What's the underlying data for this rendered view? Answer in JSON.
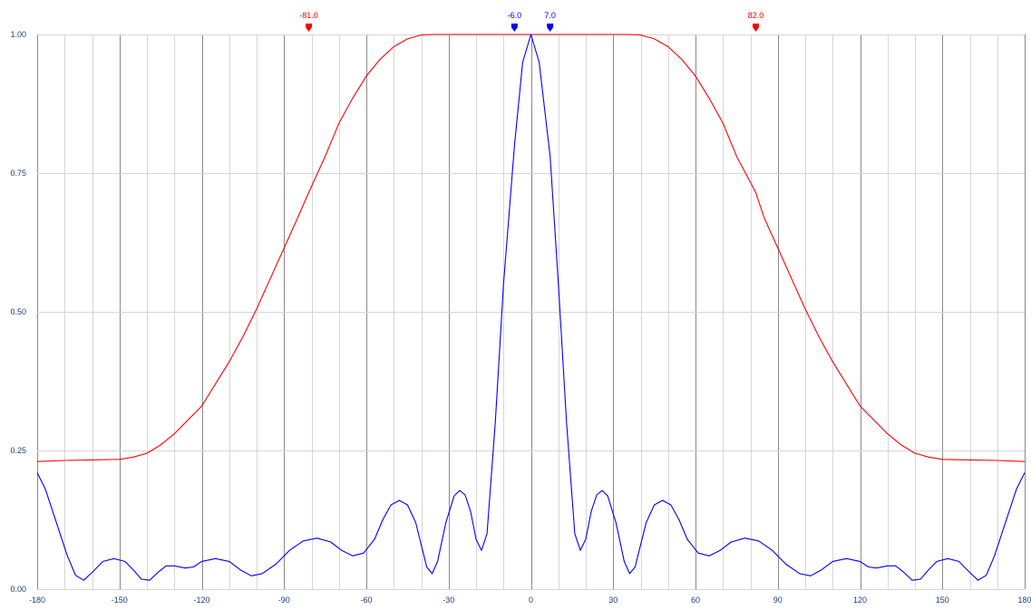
{
  "colors": {
    "background": "#ffffff",
    "major_grid": "#8a8a8a",
    "minor_grid": "#d6d6d6",
    "axis_text": "#1f3f7a"
  },
  "chart_data": {
    "type": "line",
    "title": "",
    "xlabel": "",
    "ylabel": "",
    "xlim": [
      -180,
      180
    ],
    "ylim": [
      0,
      1
    ],
    "grid": true,
    "legend": "none",
    "x_ticks": [
      "-180",
      "-150",
      "-120",
      "-90",
      "-60",
      "-30",
      "0",
      "30",
      "60",
      "90",
      "120",
      "150",
      "180"
    ],
    "y_ticks": [
      "0.00",
      "0.25",
      "0.50",
      "0.75",
      "1.00"
    ],
    "series": [
      {
        "color": "#ff0000",
        "points": [
          [
            -180,
            0.23
          ],
          [
            -170,
            0.232
          ],
          [
            -160,
            0.233
          ],
          [
            -150,
            0.234
          ],
          [
            -145,
            0.238
          ],
          [
            -140,
            0.245
          ],
          [
            -135,
            0.26
          ],
          [
            -130,
            0.28
          ],
          [
            -125,
            0.305
          ],
          [
            -120,
            0.33
          ],
          [
            -115,
            0.37
          ],
          [
            -110,
            0.41
          ],
          [
            -105,
            0.455
          ],
          [
            -100,
            0.505
          ],
          [
            -95,
            0.56
          ],
          [
            -90,
            0.615
          ],
          [
            -85,
            0.67
          ],
          [
            -81,
            0.715
          ],
          [
            -75,
            0.78
          ],
          [
            -70,
            0.84
          ],
          [
            -65,
            0.885
          ],
          [
            -60,
            0.925
          ],
          [
            -55,
            0.955
          ],
          [
            -50,
            0.978
          ],
          [
            -45,
            0.992
          ],
          [
            -40,
            0.999
          ],
          [
            -35,
            1.0
          ],
          [
            0,
            1.0
          ],
          [
            35,
            1.0
          ],
          [
            40,
            0.999
          ],
          [
            45,
            0.992
          ],
          [
            50,
            0.978
          ],
          [
            55,
            0.955
          ],
          [
            60,
            0.925
          ],
          [
            65,
            0.885
          ],
          [
            70,
            0.84
          ],
          [
            75,
            0.78
          ],
          [
            82,
            0.715
          ],
          [
            85,
            0.67
          ],
          [
            90,
            0.615
          ],
          [
            95,
            0.56
          ],
          [
            100,
            0.505
          ],
          [
            105,
            0.455
          ],
          [
            110,
            0.41
          ],
          [
            115,
            0.37
          ],
          [
            120,
            0.33
          ],
          [
            125,
            0.305
          ],
          [
            130,
            0.28
          ],
          [
            135,
            0.26
          ],
          [
            140,
            0.245
          ],
          [
            145,
            0.238
          ],
          [
            150,
            0.234
          ],
          [
            160,
            0.233
          ],
          [
            170,
            0.232
          ],
          [
            180,
            0.23
          ]
        ]
      },
      {
        "color": "#0000ff",
        "points": [
          [
            -180,
            0.21
          ],
          [
            -177,
            0.18
          ],
          [
            -173,
            0.12
          ],
          [
            -169,
            0.06
          ],
          [
            -166,
            0.025
          ],
          [
            -163,
            0.016
          ],
          [
            -160,
            0.03
          ],
          [
            -156,
            0.05
          ],
          [
            -152,
            0.055
          ],
          [
            -148,
            0.05
          ],
          [
            -145,
            0.035
          ],
          [
            -142,
            0.018
          ],
          [
            -139,
            0.016
          ],
          [
            -136,
            0.03
          ],
          [
            -133,
            0.042
          ],
          [
            -130,
            0.042
          ],
          [
            -126,
            0.038
          ],
          [
            -123,
            0.04
          ],
          [
            -120,
            0.05
          ],
          [
            -115,
            0.055
          ],
          [
            -110,
            0.05
          ],
          [
            -106,
            0.035
          ],
          [
            -102,
            0.024
          ],
          [
            -98,
            0.028
          ],
          [
            -93,
            0.045
          ],
          [
            -88,
            0.07
          ],
          [
            -83,
            0.087
          ],
          [
            -78,
            0.092
          ],
          [
            -73,
            0.085
          ],
          [
            -69,
            0.07
          ],
          [
            -65,
            0.06
          ],
          [
            -61,
            0.065
          ],
          [
            -57,
            0.09
          ],
          [
            -54,
            0.125
          ],
          [
            -51,
            0.152
          ],
          [
            -48,
            0.16
          ],
          [
            -45,
            0.152
          ],
          [
            -42,
            0.12
          ],
          [
            -40,
            0.08
          ],
          [
            -38,
            0.04
          ],
          [
            -36,
            0.028
          ],
          [
            -34,
            0.05
          ],
          [
            -31,
            0.12
          ],
          [
            -28,
            0.168
          ],
          [
            -26,
            0.178
          ],
          [
            -24,
            0.17
          ],
          [
            -22,
            0.14
          ],
          [
            -20,
            0.09
          ],
          [
            -18,
            0.07
          ],
          [
            -16,
            0.1
          ],
          [
            -13,
            0.3
          ],
          [
            -10,
            0.55
          ],
          [
            -6,
            0.8
          ],
          [
            -3,
            0.95
          ],
          [
            0,
            1.0
          ],
          [
            3,
            0.95
          ],
          [
            7,
            0.78
          ],
          [
            10,
            0.55
          ],
          [
            13,
            0.3
          ],
          [
            16,
            0.1
          ],
          [
            18,
            0.07
          ],
          [
            20,
            0.09
          ],
          [
            22,
            0.14
          ],
          [
            24,
            0.17
          ],
          [
            26,
            0.178
          ],
          [
            28,
            0.168
          ],
          [
            31,
            0.12
          ],
          [
            34,
            0.05
          ],
          [
            36,
            0.028
          ],
          [
            38,
            0.04
          ],
          [
            40,
            0.08
          ],
          [
            42,
            0.12
          ],
          [
            45,
            0.152
          ],
          [
            48,
            0.16
          ],
          [
            51,
            0.152
          ],
          [
            54,
            0.125
          ],
          [
            57,
            0.09
          ],
          [
            61,
            0.065
          ],
          [
            65,
            0.06
          ],
          [
            69,
            0.07
          ],
          [
            73,
            0.085
          ],
          [
            78,
            0.092
          ],
          [
            83,
            0.087
          ],
          [
            88,
            0.07
          ],
          [
            93,
            0.045
          ],
          [
            98,
            0.028
          ],
          [
            102,
            0.024
          ],
          [
            106,
            0.035
          ],
          [
            110,
            0.05
          ],
          [
            115,
            0.055
          ],
          [
            120,
            0.05
          ],
          [
            123,
            0.04
          ],
          [
            126,
            0.038
          ],
          [
            130,
            0.042
          ],
          [
            133,
            0.042
          ],
          [
            136,
            0.03
          ],
          [
            139,
            0.016
          ],
          [
            142,
            0.018
          ],
          [
            145,
            0.035
          ],
          [
            148,
            0.05
          ],
          [
            152,
            0.055
          ],
          [
            156,
            0.05
          ],
          [
            160,
            0.03
          ],
          [
            163,
            0.016
          ],
          [
            166,
            0.025
          ],
          [
            169,
            0.06
          ],
          [
            173,
            0.12
          ],
          [
            177,
            0.18
          ],
          [
            180,
            0.21
          ]
        ]
      }
    ],
    "markers": [
      {
        "label": "-81.0",
        "x": -81,
        "color": "#ff0000"
      },
      {
        "label": "-6.0",
        "x": -6,
        "color": "#0000ff"
      },
      {
        "label": "7.0",
        "x": 7,
        "color": "#0000ff"
      },
      {
        "label": "82.0",
        "x": 82,
        "color": "#ff0000"
      }
    ]
  }
}
